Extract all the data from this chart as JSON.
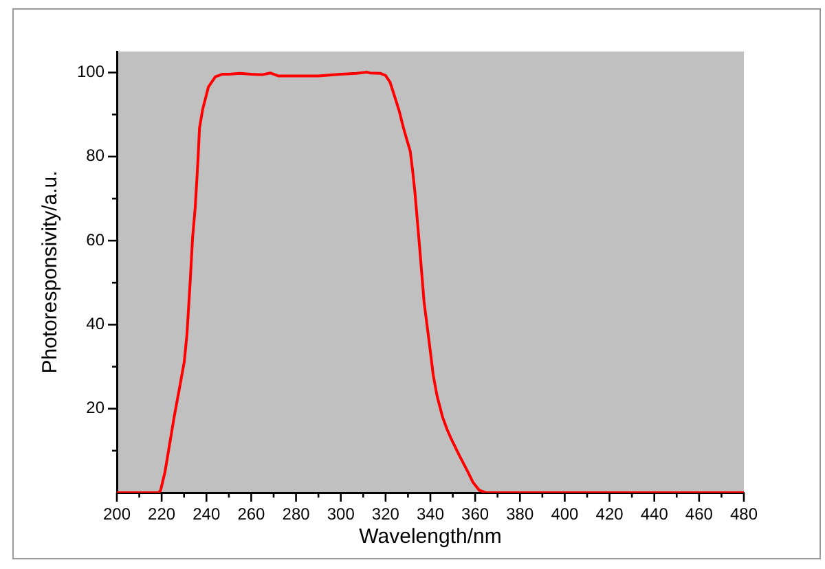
{
  "chart_data": {
    "type": "line",
    "xlabel": "Wavelength/nm",
    "ylabel": "Photoresponsivity/a.u.",
    "x": [
      200,
      210,
      218.5,
      219.5,
      221.5,
      225.6,
      228,
      230.1,
      231.3,
      232.8,
      233.8,
      235,
      236.2,
      236.9,
      238.3,
      240.9,
      244,
      247,
      250,
      255,
      260,
      265,
      268.5,
      272,
      280,
      290,
      300,
      307,
      311.6,
      313,
      317.8,
      320,
      322,
      324,
      326,
      328,
      329.5,
      331,
      332,
      333.1,
      335.2,
      337.2,
      339.3,
      341.3,
      343,
      345.4,
      347.5,
      349.5,
      353,
      356.7,
      359,
      361.8,
      364.9,
      380,
      480
    ],
    "values": [
      0,
      0,
      0,
      0.5,
      5,
      18.1,
      25,
      31.2,
      37.7,
      50.8,
      60.6,
      68,
      79,
      86.8,
      91.2,
      96.6,
      99,
      99.6,
      99.6,
      99.8,
      99.6,
      99.5,
      99.9,
      99.2,
      99.2,
      99.2,
      99.6,
      99.8,
      100.1,
      99.9,
      99.8,
      99.3,
      97.7,
      94.4,
      91,
      86.8,
      84,
      81.3,
      77,
      71.5,
      58.4,
      45.3,
      36.6,
      27.9,
      23,
      18.1,
      15,
      12.6,
      8.8,
      5,
      2.5,
      0.6,
      0,
      0,
      0
    ],
    "color": "#ff0000",
    "xlim": [
      200,
      480
    ],
    "xticks": [
      200,
      {
        "value": 210,
        "label": null
      },
      220,
      {
        "value": 230,
        "label": null
      },
      240,
      {
        "value": 250,
        "label": null
      },
      260,
      {
        "value": 270,
        "label": null
      },
      280,
      {
        "value": 290,
        "label": null
      },
      300,
      {
        "value": 310,
        "label": null
      },
      320,
      {
        "value": 330,
        "label": null
      },
      340,
      {
        "value": 350,
        "label": null
      },
      360,
      {
        "value": 370,
        "label": null
      },
      380,
      {
        "value": 390,
        "label": null
      },
      400,
      {
        "value": 410,
        "label": null
      },
      420,
      {
        "value": 430,
        "label": null
      },
      440,
      {
        "value": 450,
        "label": null
      },
      460,
      {
        "value": 470,
        "label": null
      },
      480
    ],
    "ylim": [
      0,
      105
    ],
    "yticks": [
      {
        "value": 10,
        "label": null
      },
      20,
      {
        "value": 30,
        "label": null
      },
      40,
      {
        "value": 50,
        "label": null
      },
      60,
      {
        "value": 70,
        "label": null
      },
      80,
      {
        "value": 90,
        "label": null
      },
      100
    ]
  }
}
